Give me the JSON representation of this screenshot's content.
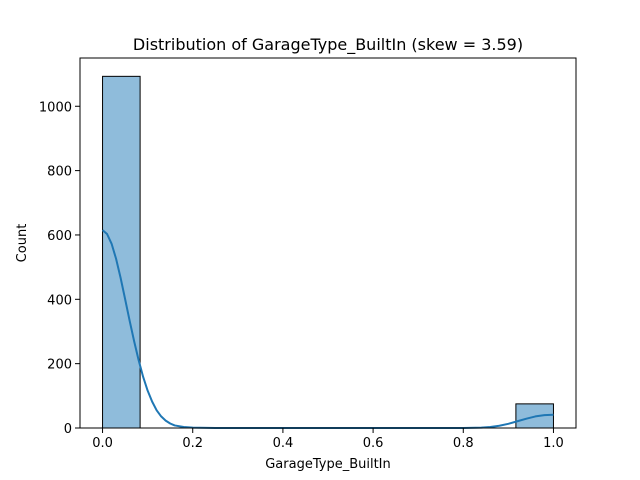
{
  "chart_data": {
    "type": "histogram",
    "title": "Distribution of GarageType_BuiltIn (skew = 3.59)",
    "xlabel": "GarageType_BuiltIn",
    "ylabel": "Count",
    "xlim": [
      -0.05,
      1.05
    ],
    "ylim": [
      0,
      1150
    ],
    "xticks": [
      0.0,
      0.2,
      0.4,
      0.6,
      0.8,
      1.0
    ],
    "xtick_labels": [
      "0.0",
      "0.2",
      "0.4",
      "0.6",
      "0.8",
      "1.0"
    ],
    "yticks": [
      0,
      200,
      400,
      600,
      800,
      1000
    ],
    "ytick_labels": [
      "0",
      "200",
      "400",
      "600",
      "800",
      "1000"
    ],
    "bins": [
      {
        "x0": 0.0,
        "x1": 0.0833,
        "count": 1093
      },
      {
        "x0": 0.9167,
        "x1": 1.0,
        "count": 75
      }
    ],
    "kde": {
      "x": [
        0.0,
        0.01,
        0.02,
        0.03,
        0.04,
        0.05,
        0.06,
        0.07,
        0.08,
        0.09,
        0.1,
        0.11,
        0.12,
        0.13,
        0.14,
        0.15,
        0.16,
        0.18,
        0.2,
        0.25,
        0.3,
        0.4,
        0.5,
        0.6,
        0.7,
        0.8,
        0.84,
        0.86,
        0.88,
        0.9,
        0.92,
        0.94,
        0.96,
        0.98,
        1.0
      ],
      "y": [
        615,
        603,
        573,
        526,
        467,
        401,
        334,
        270,
        211,
        159,
        116,
        82,
        55,
        36,
        23,
        14,
        8,
        3,
        1,
        0,
        0,
        0,
        0,
        0,
        0,
        0,
        1,
        3,
        7,
        13,
        21,
        29,
        36,
        40,
        41
      ]
    },
    "colors": {
      "bar_fill": "#8fbcdb",
      "bar_edge": "#000000",
      "kde_line": "#1f77b4"
    },
    "grid": false,
    "legend": "none"
  }
}
